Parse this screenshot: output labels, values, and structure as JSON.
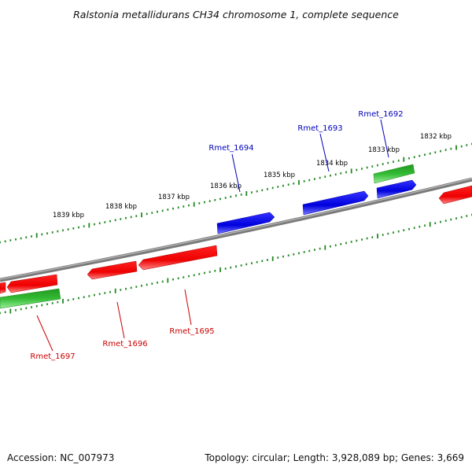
{
  "title": "Ralstonia metallidurans CH34 chromosome 1, complete sequence",
  "footer": {
    "accession": "Accession: NC_007973",
    "summary": "Topology: circular; Length: 3,928,089 bp; Genes: 3,669"
  },
  "colors": {
    "forward_strand": "#0000dd",
    "reverse_strand": "#ee0000",
    "other_gene": "#33bb33",
    "backbone": "#808080",
    "ticks": "#228822",
    "label_blue": "#0000bb",
    "label_red": "#cc0000"
  },
  "kbp_labels": [
    "1839 kbp",
    "1838 kbp",
    "1837 kbp",
    "1836 kbp",
    "1835 kbp",
    "1834 kbp",
    "1833 kbp",
    "1832 kbp"
  ],
  "gene_labels_top": [
    "Rmet_1694",
    "Rmet_1693",
    "Rmet_1692"
  ],
  "gene_labels_bottom": [
    "Rmet_1697",
    "Rmet_1696",
    "Rmet_1695"
  ]
}
